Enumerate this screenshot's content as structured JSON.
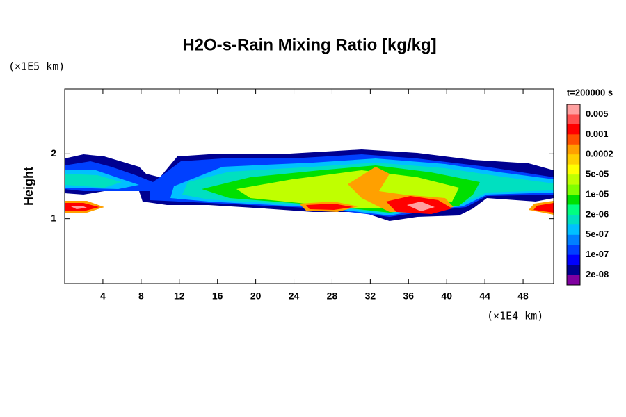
{
  "chart_data": {
    "type": "contour",
    "title": "H2O-s-Rain Mixing Ratio [kg/kg]",
    "y_label": "Height",
    "x_unit_label": "(×1E4 km)",
    "y_unit_label": "(×1E5 km)",
    "time_label": "t=200000 s",
    "xlim": [
      0,
      51.2
    ],
    "xticks": [
      4,
      8,
      12,
      16,
      20,
      24,
      28,
      32,
      36,
      40,
      44,
      48
    ],
    "ylim": [
      0,
      3
    ],
    "yticks": [
      1,
      2
    ],
    "colorbar_ticks": [
      0.005,
      0.001,
      0.0002,
      {
        "value": 5e-05,
        "label": "5e-05"
      },
      {
        "value": 1e-05,
        "label": "1e-05"
      },
      {
        "value": 2e-06,
        "label": "2e-06"
      },
      {
        "value": 5e-07,
        "label": "5e-07"
      },
      {
        "value": 1e-07,
        "label": "1e-07"
      },
      {
        "value": 2e-08,
        "label": "2e-08"
      }
    ],
    "colors": [
      "#ffa0a0",
      "#ff5050",
      "#ff0000",
      "#ff5000",
      "#ffa000",
      "#ffd000",
      "#ffff00",
      "#c0ff00",
      "#80ff00",
      "#00e000",
      "#00ff80",
      "#00e0c0",
      "#00c0ff",
      "#0080ff",
      "#0040ff",
      "#0000ff",
      "#000090",
      "#8000a0"
    ]
  }
}
